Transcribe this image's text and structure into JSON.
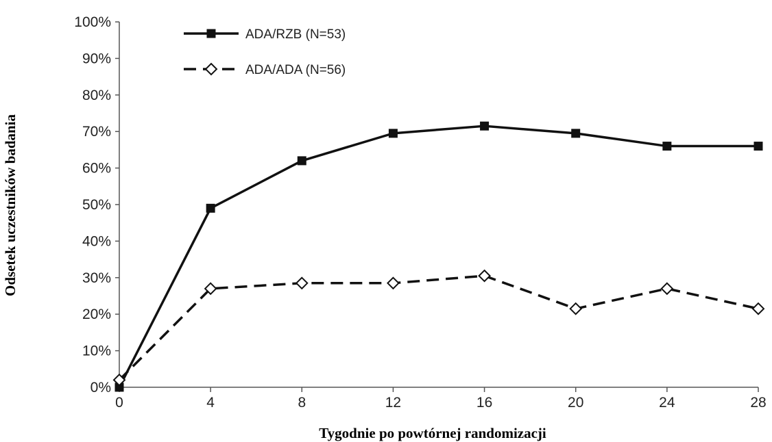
{
  "chart_data": {
    "type": "line",
    "xlabel": "Tygodnie po powtórnej randomizacji",
    "ylabel": "Odsetek uczestników badania",
    "x": [
      0,
      4,
      8,
      12,
      16,
      20,
      24,
      28
    ],
    "xlim": [
      0,
      28
    ],
    "ylim": [
      0,
      100
    ],
    "y_ticks": [
      "0%",
      "10%",
      "20%",
      "30%",
      "40%",
      "50%",
      "60%",
      "70%",
      "80%",
      "90%",
      "100%"
    ],
    "x_ticks": [
      "0",
      "4",
      "8",
      "12",
      "16",
      "20",
      "24",
      "28"
    ],
    "grid": false,
    "legend_position": "top-left",
    "series": [
      {
        "name": "ADA/RZB (N=53)",
        "values": [
          0,
          49,
          62,
          69.5,
          71.5,
          69.5,
          66,
          66
        ],
        "line_style": "solid",
        "marker": "filled-square",
        "color": "#111111"
      },
      {
        "name": "ADA/ADA (N=56)",
        "values": [
          2,
          27,
          28.5,
          28.5,
          30.5,
          21.5,
          27,
          21.5
        ],
        "line_style": "dashed",
        "marker": "open-diamond",
        "color": "#111111"
      }
    ]
  }
}
